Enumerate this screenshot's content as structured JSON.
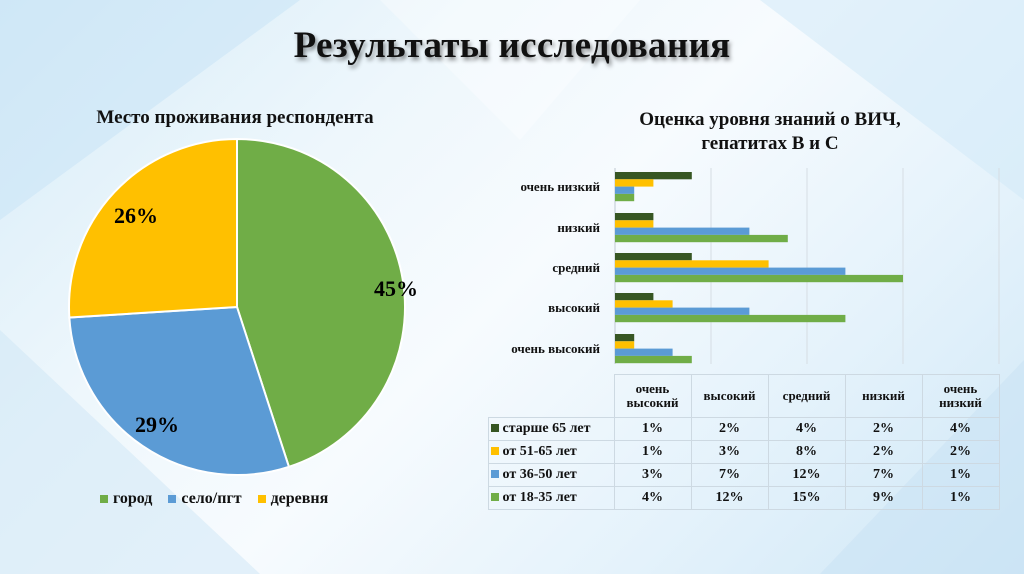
{
  "slide": {
    "title": "Результаты исследования"
  },
  "pie": {
    "title": "Место проживания респондента",
    "labels": [
      "45%",
      "29%",
      "26%"
    ]
  },
  "bar": {
    "title_line1": "Оценка уровня знаний о ВИЧ,",
    "title_line2": "гепатитах В и С"
  },
  "table": {
    "headers": [
      {
        "l1": "очень",
        "l2": "высокий"
      },
      {
        "l1": "высокий",
        "l2": ""
      },
      {
        "l1": "средний",
        "l2": ""
      },
      {
        "l1": "низкий",
        "l2": ""
      },
      {
        "l1": "очень",
        "l2": "низкий"
      }
    ],
    "rows": [
      {
        "label": "старше 65 лет",
        "values": [
          "1%",
          "2%",
          "4%",
          "2%",
          "4%"
        ]
      },
      {
        "label": "от 51-65 лет",
        "values": [
          "1%",
          "3%",
          "8%",
          "2%",
          "2%"
        ]
      },
      {
        "label": "от 36-50 лет",
        "values": [
          "3%",
          "7%",
          "12%",
          "7%",
          "1%"
        ]
      },
      {
        "label": "от 18-35 лет",
        "values": [
          "4%",
          "12%",
          "15%",
          "9%",
          "1%"
        ]
      }
    ]
  },
  "colors": {
    "city": "#70ad47",
    "village_pgt": "#5b9bd5",
    "village": "#ffc000",
    "older65": "#375623",
    "age51_65": "#ffc000",
    "age36_50": "#5b9bd5",
    "age18_35": "#70ad47"
  },
  "chart_data": [
    {
      "type": "pie",
      "title": "Место проживания респондента",
      "categories": [
        "город",
        "село/пгт",
        "деревня"
      ],
      "values": [
        45,
        29,
        26
      ],
      "unit": "%",
      "colors": [
        "#70ad47",
        "#5b9bd5",
        "#ffc000"
      ],
      "legend_position": "bottom",
      "data_labels": [
        "45%",
        "29%",
        "26%"
      ]
    },
    {
      "type": "bar",
      "orientation": "horizontal",
      "title": "Оценка уровня знаний о ВИЧ, гепатитах В и С",
      "categories": [
        "очень высокий",
        "высокий",
        "средний",
        "низкий",
        "очень низкий"
      ],
      "series": [
        {
          "name": "старше 65 лет",
          "color": "#375623",
          "values": [
            1,
            2,
            4,
            2,
            4
          ]
        },
        {
          "name": "от 51-65 лет",
          "color": "#ffc000",
          "values": [
            1,
            3,
            8,
            2,
            2
          ]
        },
        {
          "name": "от 36-50 лет",
          "color": "#5b9bd5",
          "values": [
            3,
            7,
            12,
            7,
            1
          ]
        },
        {
          "name": "от 18-35 лет",
          "color": "#70ad47",
          "values": [
            4,
            12,
            15,
            9,
            1
          ]
        }
      ],
      "unit": "%",
      "xlim": [
        0,
        20
      ],
      "grid": true,
      "data_table": true,
      "xlabel": "",
      "ylabel": ""
    }
  ]
}
